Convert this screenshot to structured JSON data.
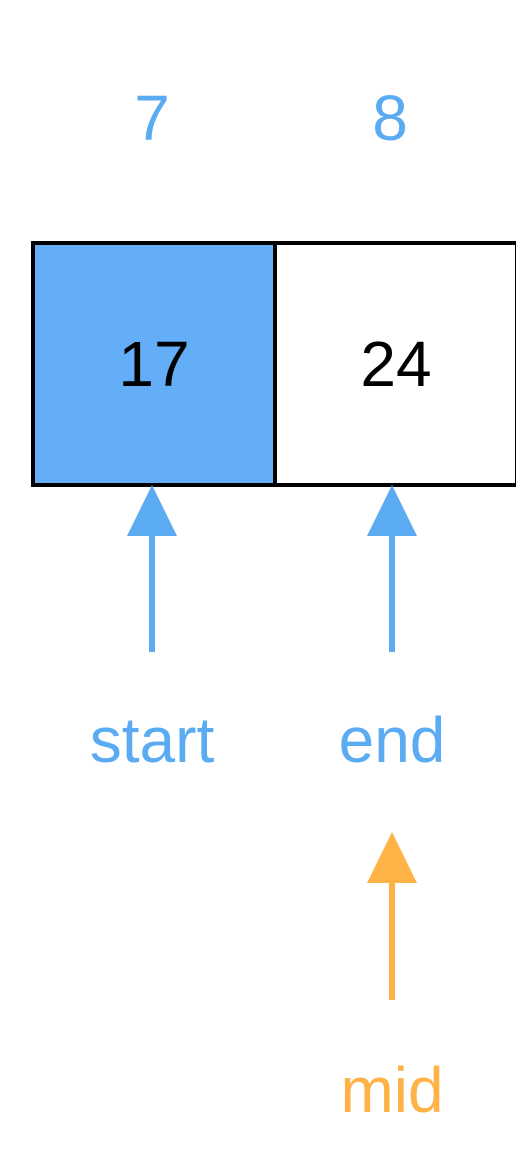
{
  "colors": {
    "pointer": "#5aabf2",
    "mid_pointer": "#ffb347",
    "highlight": "#63aef7",
    "cell_border": "#000000",
    "cell_default": "#ffffff"
  },
  "array": {
    "cells": [
      {
        "index": "7",
        "value": "17",
        "highlighted": true
      },
      {
        "index": "8",
        "value": "24",
        "highlighted": false
      }
    ]
  },
  "pointers": {
    "start": {
      "label": "start",
      "cell": 0,
      "icon": "arrow-up-icon"
    },
    "end": {
      "label": "end",
      "cell": 1,
      "icon": "arrow-up-icon"
    },
    "mid": {
      "label": "mid",
      "cell": 1,
      "icon": "arrow-up-icon"
    }
  }
}
